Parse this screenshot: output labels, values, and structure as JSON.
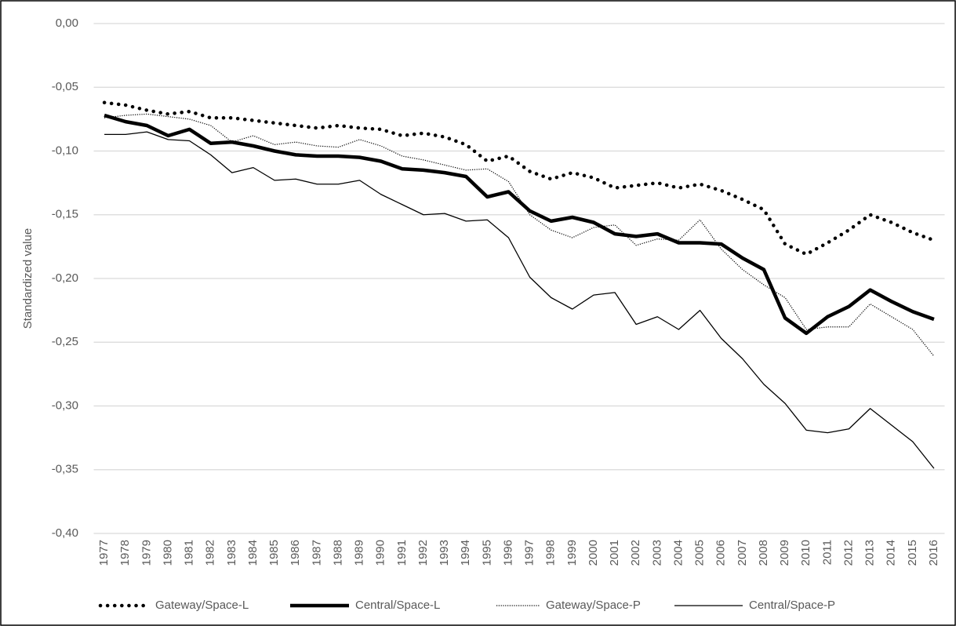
{
  "chart_data": {
    "type": "line",
    "y_label": "Standardized value",
    "categories": [
      "1977",
      "1978",
      "1979",
      "1980",
      "1981",
      "1982",
      "1983",
      "1984",
      "1985",
      "1986",
      "1987",
      "1988",
      "1989",
      "1990",
      "1991",
      "1992",
      "1993",
      "1994",
      "1995",
      "1996",
      "1997",
      "1998",
      "1999",
      "2000",
      "2001",
      "2002",
      "2003",
      "2004",
      "2005",
      "2006",
      "2007",
      "2008",
      "2009",
      "2010",
      "2011",
      "2012",
      "2013",
      "2014",
      "2015",
      "2016"
    ],
    "series": [
      {
        "name": "Gateway/Space-L",
        "color": "#000000",
        "width": 4.5,
        "style": "dotted",
        "values": [
          -0.062,
          -0.064,
          -0.068,
          -0.071,
          -0.069,
          -0.074,
          -0.074,
          -0.076,
          -0.078,
          -0.08,
          -0.082,
          -0.08,
          -0.082,
          -0.083,
          -0.088,
          -0.086,
          -0.089,
          -0.095,
          -0.108,
          -0.104,
          -0.116,
          -0.122,
          -0.117,
          -0.121,
          -0.129,
          -0.127,
          -0.125,
          -0.129,
          -0.126,
          -0.131,
          -0.138,
          -0.146,
          -0.173,
          -0.181,
          -0.172,
          -0.162,
          -0.15,
          -0.156,
          -0.164,
          -0.17
        ]
      },
      {
        "name": "Central/Space-L",
        "color": "#000000",
        "width": 4.5,
        "style": "solid",
        "values": [
          -0.072,
          -0.077,
          -0.08,
          -0.088,
          -0.083,
          -0.094,
          -0.093,
          -0.096,
          -0.1,
          -0.103,
          -0.104,
          -0.104,
          -0.105,
          -0.108,
          -0.114,
          -0.115,
          -0.117,
          -0.12,
          -0.136,
          -0.132,
          -0.147,
          -0.155,
          -0.152,
          -0.156,
          -0.165,
          -0.167,
          -0.165,
          -0.172,
          -0.172,
          -0.173,
          -0.184,
          -0.193,
          -0.231,
          -0.243,
          -0.23,
          -0.222,
          -0.209,
          -0.218,
          -0.226,
          -0.232
        ]
      },
      {
        "name": "Gateway/Space-P",
        "color": "#000000",
        "width": 1.2,
        "style": "dotted",
        "values": [
          -0.074,
          -0.072,
          -0.071,
          -0.073,
          -0.075,
          -0.08,
          -0.093,
          -0.088,
          -0.095,
          -0.093,
          -0.096,
          -0.097,
          -0.091,
          -0.096,
          -0.104,
          -0.107,
          -0.111,
          -0.115,
          -0.114,
          -0.124,
          -0.15,
          -0.162,
          -0.168,
          -0.16,
          -0.158,
          -0.174,
          -0.169,
          -0.17,
          -0.154,
          -0.177,
          -0.193,
          -0.205,
          -0.215,
          -0.24,
          -0.238,
          -0.238,
          -0.22,
          -0.23,
          -0.24,
          -0.261
        ]
      },
      {
        "name": "Central/Space-P",
        "color": "#000000",
        "width": 1.3,
        "style": "solid",
        "values": [
          -0.087,
          -0.087,
          -0.085,
          -0.091,
          -0.092,
          -0.103,
          -0.117,
          -0.113,
          -0.123,
          -0.122,
          -0.126,
          -0.126,
          -0.123,
          -0.134,
          -0.142,
          -0.15,
          -0.149,
          -0.155,
          -0.154,
          -0.168,
          -0.199,
          -0.215,
          -0.224,
          -0.213,
          -0.211,
          -0.236,
          -0.23,
          -0.24,
          -0.225,
          -0.247,
          -0.263,
          -0.283,
          -0.298,
          -0.319,
          -0.321,
          -0.318,
          -0.302,
          -0.315,
          -0.328,
          -0.349
        ]
      }
    ],
    "ylim": [
      -0.4,
      0
    ],
    "yticks": [
      {
        "value": 0,
        "label": "0,00"
      },
      {
        "value": -0.05,
        "label": "-0,05"
      },
      {
        "value": -0.1,
        "label": "-0,10"
      },
      {
        "value": -0.15,
        "label": "-0,15"
      },
      {
        "value": -0.2,
        "label": "-0,20"
      },
      {
        "value": -0.25,
        "label": "-0,25"
      },
      {
        "value": -0.3,
        "label": "-0,30"
      },
      {
        "value": -0.35,
        "label": "-0,35"
      },
      {
        "value": -0.4,
        "label": "-0,40"
      }
    ],
    "grid": true,
    "legend": "bottom"
  }
}
